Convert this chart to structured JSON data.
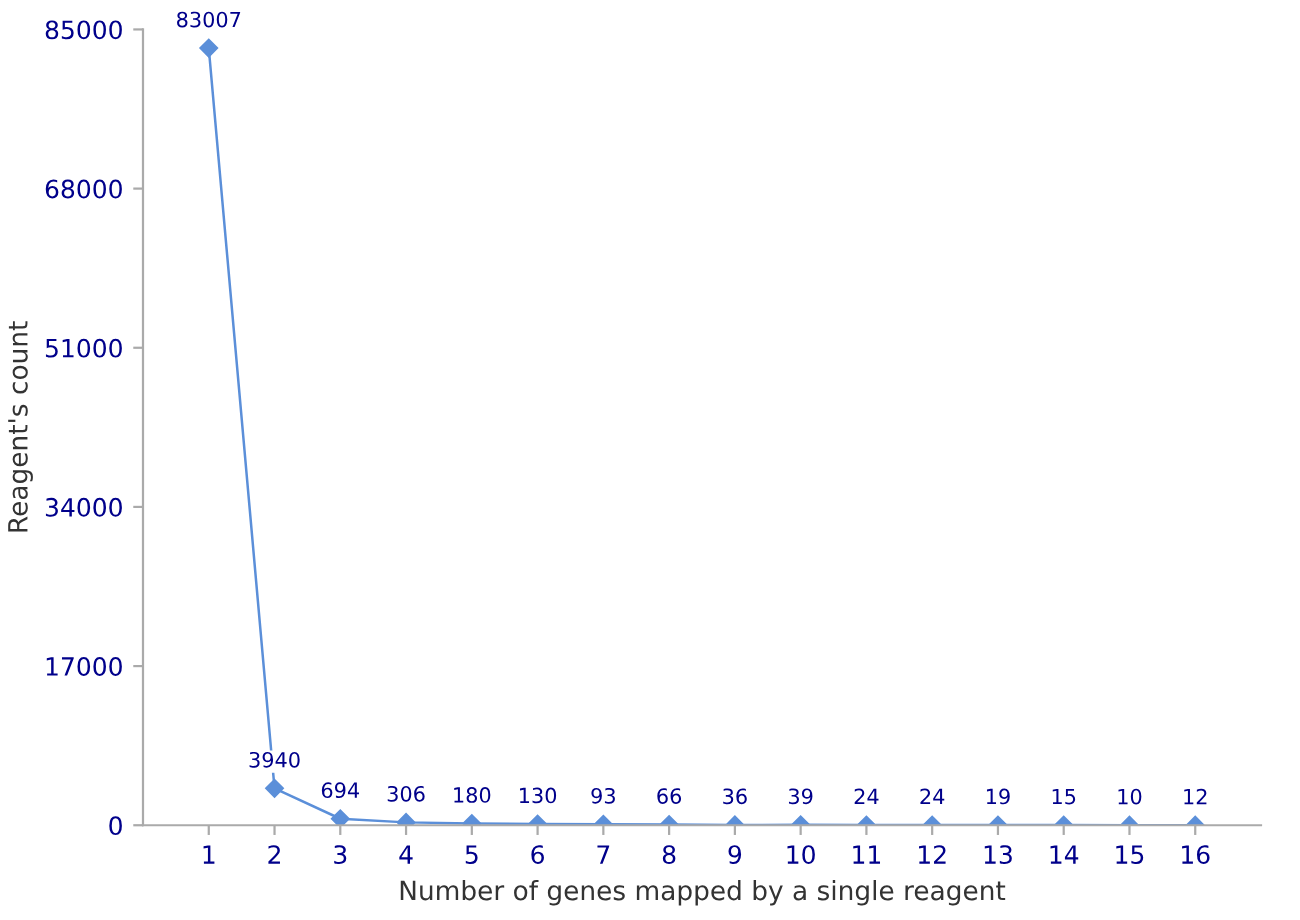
{
  "chart_data": {
    "type": "line",
    "xlabel": "Number of genes mapped by a single reagent",
    "ylabel": "Reagent's count",
    "categories": [
      "1",
      "2",
      "3",
      "4",
      "5",
      "6",
      "7",
      "8",
      "9",
      "10",
      "11",
      "12",
      "13",
      "14",
      "15",
      "16"
    ],
    "series": [
      {
        "color": "#5b8fd9",
        "values": [
          83007,
          3940,
          694,
          306,
          180,
          130,
          93,
          66,
          36,
          39,
          24,
          24,
          19,
          15,
          10,
          12
        ]
      }
    ],
    "ylim": [
      0,
      85000
    ],
    "yticks": [
      0,
      17000,
      34000,
      51000,
      68000,
      85000
    ],
    "data_labels": true,
    "marker": "diamond",
    "line_style": "solid",
    "grid": false,
    "legend": false
  }
}
